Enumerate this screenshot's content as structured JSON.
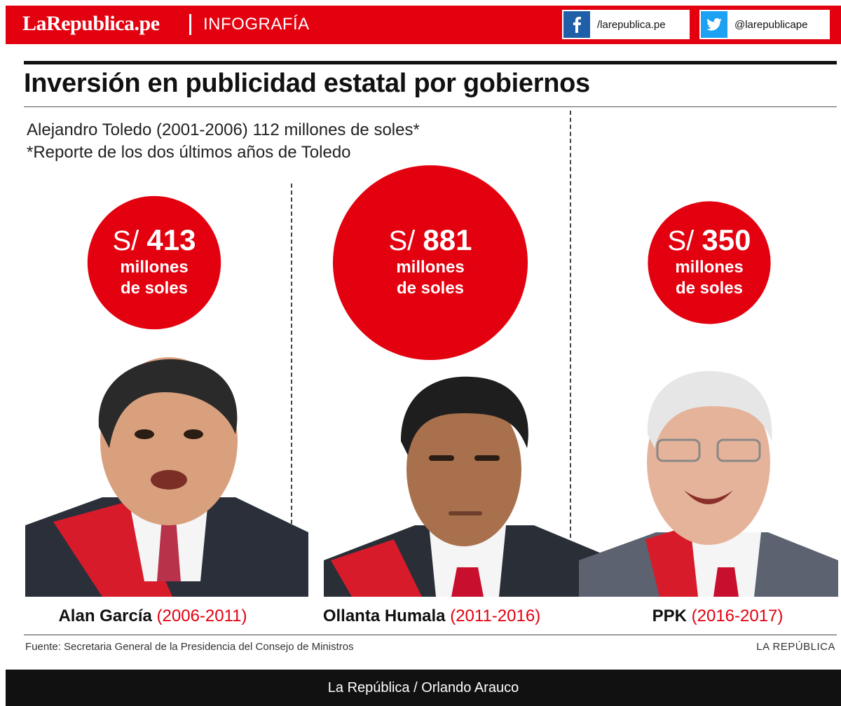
{
  "header": {
    "brand": "LaRepublica.pe",
    "section": "INFOGRAFÍA",
    "facebook_handle": "/larepublica.pe",
    "twitter_handle": "@larepublicape",
    "colors": {
      "brand_red": "#e3000f",
      "facebook": "#1f5fa8",
      "twitter": "#1da1f2"
    }
  },
  "chart_data": {
    "type": "bubble",
    "title": "Inversión en publicidad estatal por gobiernos",
    "note_line1": "Alejandro Toledo (2001-2006) 112 millones de soles*",
    "note_line2": "*Reporte de los dos últimos años de Toledo",
    "currency": "S/",
    "unit_line1": "millones",
    "unit_line2": "de soles",
    "series": [
      {
        "name": "Alan García",
        "period": "(2006-2011)",
        "value": 413,
        "value_label": "413"
      },
      {
        "name": "Ollanta Humala",
        "period": "(2011-2016)",
        "value": 881,
        "value_label": "881"
      },
      {
        "name": "PPK",
        "period": "(2016-2017)",
        "value": 350,
        "value_label": "350"
      }
    ],
    "bubble_color": "#e3000f"
  },
  "photos": [
    {
      "icon": "portrait-alan-garcia-icon"
    },
    {
      "icon": "portrait-ollanta-humala-icon"
    },
    {
      "icon": "portrait-ppk-icon"
    }
  ],
  "footer": {
    "source": "Fuente: Secretaria General de la Presidencia del Consejo de Ministros",
    "publisher": "LA REPÚBLICA",
    "credit": "La República / Orlando Arauco"
  }
}
